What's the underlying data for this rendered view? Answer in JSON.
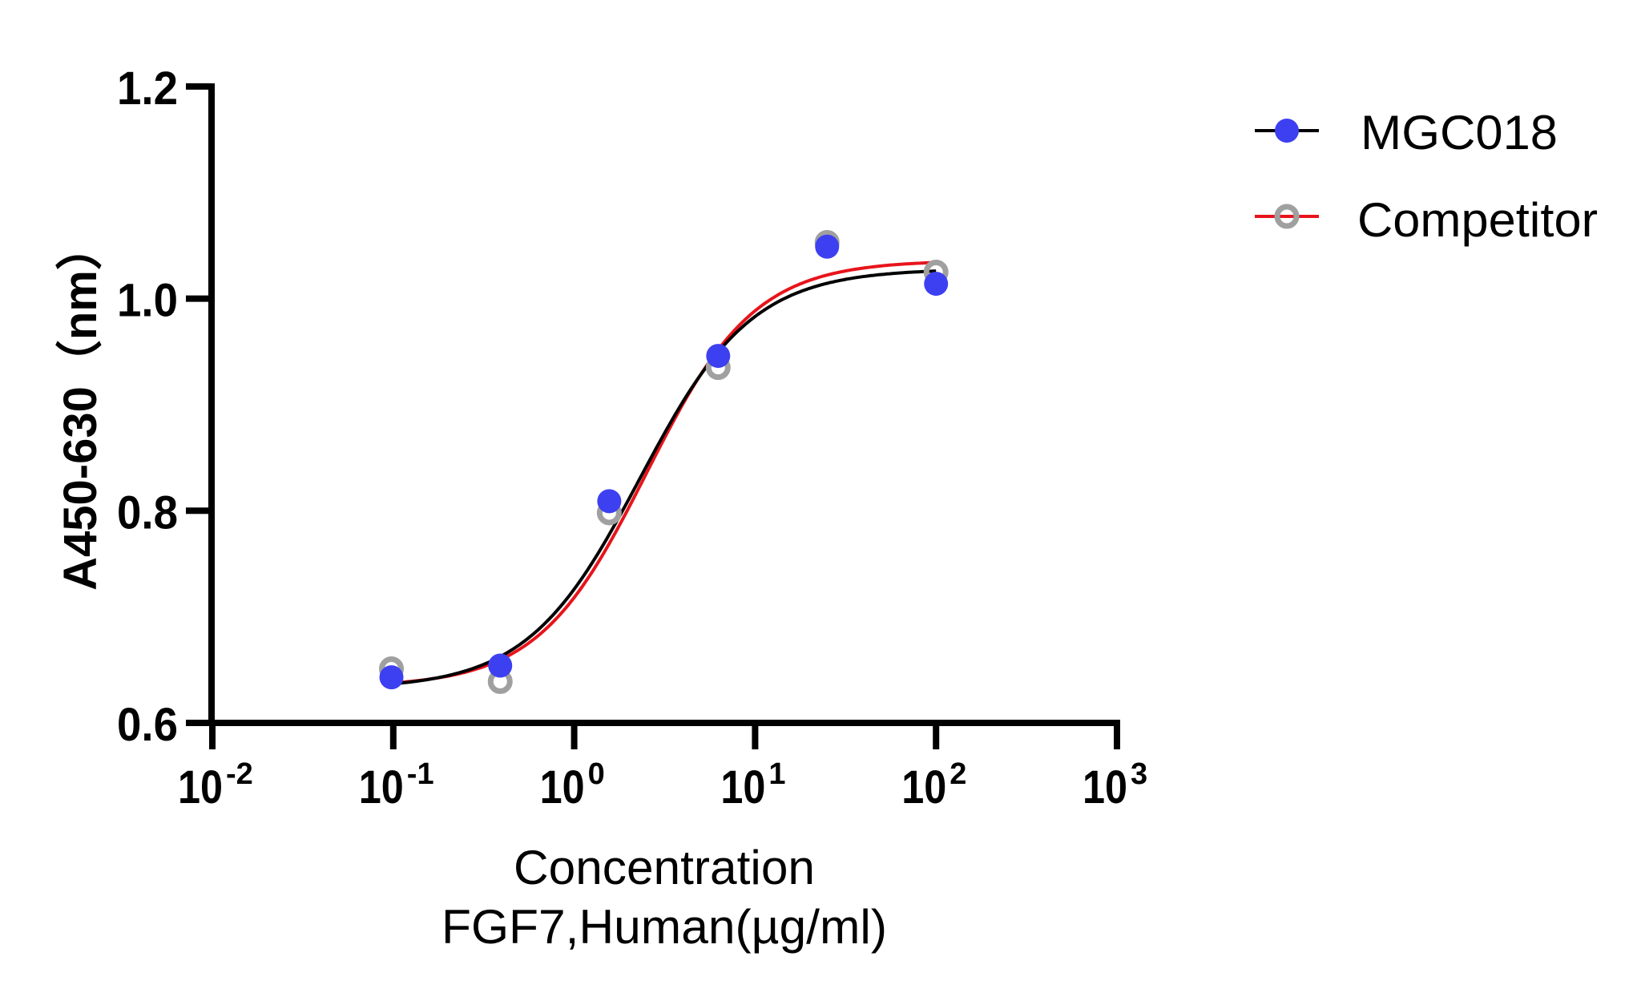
{
  "chart_data": {
    "type": "scatter",
    "title": "",
    "xlabel": [
      "Concentration",
      "FGF7,Human(µg/ml)"
    ],
    "ylabel": "A450-630（nm）",
    "xscale": "log10",
    "xlim": [
      0.01,
      1000
    ],
    "ylim": [
      0.6,
      1.2
    ],
    "grid": false,
    "legend_position": "top-right",
    "x_ticks": [
      {
        "base": "10",
        "exp": "-2",
        "value": 0.01
      },
      {
        "base": "10",
        "exp": "-1",
        "value": 0.1
      },
      {
        "base": "10",
        "exp": "0",
        "value": 1
      },
      {
        "base": "10",
        "exp": "1",
        "value": 10
      },
      {
        "base": "10",
        "exp": "2",
        "value": 100
      },
      {
        "base": "10",
        "exp": "3",
        "value": 1000
      }
    ],
    "y_ticks": [
      {
        "label": "0.6",
        "value": 0.6
      },
      {
        "label": "0.8",
        "value": 0.8
      },
      {
        "label": "1.0",
        "value": 1.0
      },
      {
        "label": "1.2",
        "value": 1.2
      }
    ],
    "series": [
      {
        "name": "MGC018",
        "marker": "filled-circle",
        "marker_color": "#3d40f0",
        "line_color": "#000000",
        "x": [
          0.0977,
          0.39,
          1.5625,
          6.25,
          25,
          100
        ],
        "y": [
          0.643,
          0.654,
          0.809,
          0.946,
          1.049,
          1.014
        ],
        "fit": {
          "model": "4PL",
          "bottom": 0.632,
          "top": 1.028,
          "ec50": 2.3,
          "hill": 1.4,
          "x_range": [
            0.0977,
            100
          ]
        }
      },
      {
        "name": "Competitor",
        "marker": "open-circle",
        "marker_color": "#a0a0a0",
        "line_color": "#e8141b",
        "x": [
          0.0977,
          0.39,
          1.5625,
          6.25,
          25,
          100
        ],
        "y": [
          0.651,
          0.639,
          0.798,
          0.935,
          1.053,
          1.025
        ],
        "fit": {
          "model": "4PL",
          "bottom": 0.634,
          "top": 1.036,
          "ec50": 2.5,
          "hill": 1.45,
          "x_range": [
            0.0977,
            100
          ]
        }
      }
    ]
  }
}
